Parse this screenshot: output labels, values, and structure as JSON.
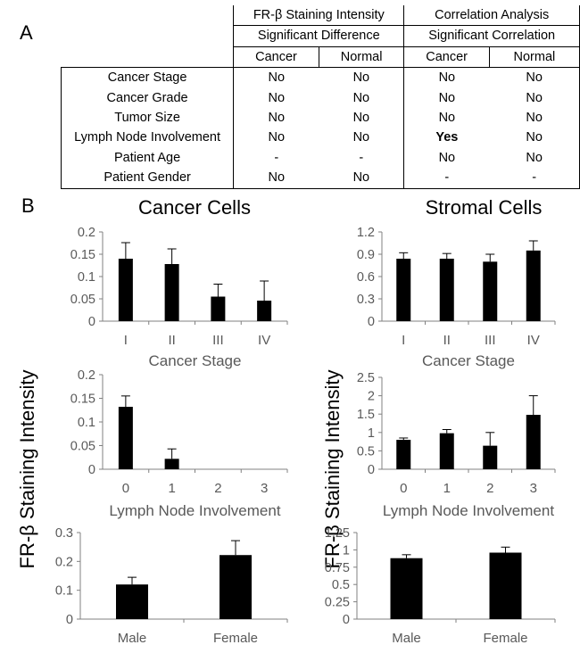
{
  "panel_a_label": "A",
  "panel_b_label": "B",
  "table": {
    "group_headers": [
      "FR-β Staining Intensity",
      "Correlation Analysis"
    ],
    "sub_headers": [
      "Significant Difference",
      "Significant Correlation"
    ],
    "col_headers": [
      "Cancer",
      "Normal",
      "Cancer",
      "Normal"
    ],
    "rows": [
      {
        "label": "Cancer Stage",
        "cells": [
          "No",
          "No",
          "No",
          "No"
        ]
      },
      {
        "label": "Cancer Grade",
        "cells": [
          "No",
          "No",
          "No",
          "No"
        ]
      },
      {
        "label": "Tumor Size",
        "cells": [
          "No",
          "No",
          "No",
          "No"
        ]
      },
      {
        "label": "Lymph Node Involvement",
        "cells": [
          "No",
          "No",
          "Yes",
          "No"
        ]
      },
      {
        "label": "Patient Age",
        "cells": [
          "-",
          "-",
          "No",
          "No"
        ]
      },
      {
        "label": "Patient Gender",
        "cells": [
          "No",
          "No",
          "-",
          "-"
        ]
      }
    ],
    "bold_cell": {
      "row": 3,
      "col": 2
    }
  },
  "column_titles": [
    "Cancer Cells",
    "Stromal Cells"
  ],
  "y_axis_label": "FR-β Staining Intensity",
  "colors": {
    "bar": "#000000",
    "axis": "#808080",
    "tick_text": "#595959"
  },
  "chart_data": [
    {
      "type": "bar",
      "id": "cancer-stage",
      "categories": [
        "I",
        "II",
        "III",
        "IV"
      ],
      "values": [
        0.14,
        0.128,
        0.055,
        0.046
      ],
      "errors": [
        0.036,
        0.034,
        0.028,
        0.044
      ],
      "xlabel": "Cancer Stage",
      "ylim": [
        0,
        0.2
      ],
      "yticks": [
        0,
        0.05,
        0.1,
        0.15,
        0.2
      ],
      "ytick_labels": [
        "0",
        "0.05",
        "0.1",
        "0.15",
        "0.2"
      ]
    },
    {
      "type": "bar",
      "id": "stromal-stage",
      "categories": [
        "I",
        "II",
        "III",
        "IV"
      ],
      "values": [
        0.84,
        0.84,
        0.8,
        0.95
      ],
      "errors": [
        0.08,
        0.07,
        0.1,
        0.13
      ],
      "xlabel": "Cancer Stage",
      "ylim": [
        0,
        1.2
      ],
      "yticks": [
        0,
        0.3,
        0.6,
        0.9,
        1.2
      ],
      "ytick_labels": [
        "0",
        "0.3",
        "0.6",
        "0.9",
        "1.2"
      ]
    },
    {
      "type": "bar",
      "id": "cancer-lymph",
      "categories": [
        "0",
        "1",
        "2",
        "3"
      ],
      "values": [
        0.132,
        0.022,
        0,
        0
      ],
      "errors": [
        0.023,
        0.021,
        0,
        0
      ],
      "xlabel": "Lymph Node Involvement",
      "ylim": [
        0,
        0.2
      ],
      "yticks": [
        0,
        0.05,
        0.1,
        0.15,
        0.2
      ],
      "ytick_labels": [
        "0",
        "0.05",
        "0.1",
        "0.15",
        "0.2"
      ]
    },
    {
      "type": "bar",
      "id": "stromal-lymph",
      "categories": [
        "0",
        "1",
        "2",
        "3"
      ],
      "values": [
        0.8,
        0.98,
        0.64,
        1.48
      ],
      "errors": [
        0.05,
        0.1,
        0.36,
        0.52
      ],
      "xlabel": "Lymph Node Involvement",
      "ylim": [
        0,
        2.5
      ],
      "yticks": [
        0,
        0.5,
        1,
        1.5,
        2,
        2.5
      ],
      "ytick_labels": [
        "0",
        "0.5",
        "1",
        "1.5",
        "2",
        "2.5"
      ]
    },
    {
      "type": "bar",
      "id": "cancer-gender",
      "categories": [
        "Male",
        "Female"
      ],
      "values": [
        0.12,
        0.222
      ],
      "errors": [
        0.025,
        0.05
      ],
      "xlabel": "",
      "ylim": [
        0,
        0.3
      ],
      "yticks": [
        0,
        0.1,
        0.2,
        0.3
      ],
      "ytick_labels": [
        "0",
        "0.1",
        "0.2",
        "0.3"
      ]
    },
    {
      "type": "bar",
      "id": "stromal-gender",
      "categories": [
        "Male",
        "Female"
      ],
      "values": [
        0.88,
        0.96
      ],
      "errors": [
        0.05,
        0.08
      ],
      "xlabel": "",
      "ylim": [
        0,
        1.25
      ],
      "yticks": [
        0,
        0.25,
        0.5,
        0.75,
        1,
        1.25
      ],
      "ytick_labels": [
        "0",
        "0.25",
        "0.5",
        "0.75",
        "1",
        "1.25"
      ]
    }
  ]
}
